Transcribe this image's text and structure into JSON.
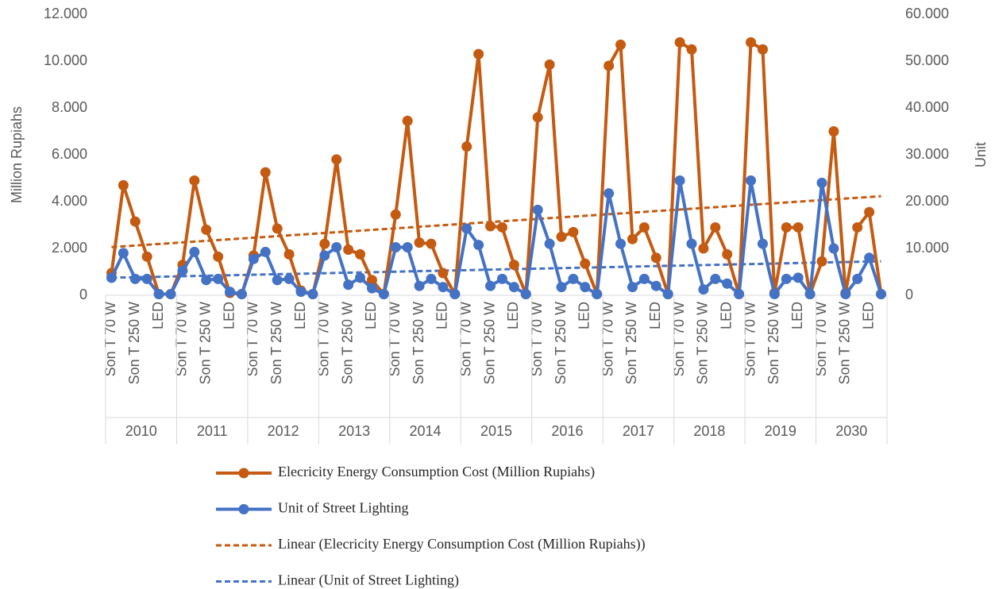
{
  "chart_data": {
    "type": "line",
    "ylabel": "Million Rupiahs",
    "y2label": "Unit",
    "groups": [
      "2010",
      "2011",
      "2012",
      "2013",
      "2014",
      "2015",
      "2016",
      "2017",
      "2018",
      "2019",
      "2030"
    ],
    "categories": [
      "Son T 70 W",
      null,
      "Son T 250 W",
      null,
      "LED",
      null,
      "Son T 70 W",
      null,
      "Son T 250 W",
      null,
      "LED",
      null,
      "Son T 70 W",
      null,
      "Son T 250 W",
      null,
      "LED",
      null,
      "Son T 70 W",
      null,
      "Son T 250 W",
      null,
      "LED",
      null,
      "Son T 70 W",
      null,
      "Son T 250 W",
      null,
      "LED",
      null,
      "Son T 70 W",
      null,
      "Son T 250 W",
      null,
      "LED",
      null,
      "Son T 70 W",
      null,
      "Son T 250 W",
      null,
      "LED",
      null,
      "Son T 70 W",
      null,
      "Son T 250 W",
      null,
      "LED",
      null,
      "Son T 70 W",
      null,
      "Son T 250 W",
      null,
      "LED",
      null,
      "Son T 70 W",
      null,
      "Son T 250 W",
      null,
      "LED",
      null,
      "Son T 70 W",
      null,
      "Son T 250 W",
      null,
      "LED",
      null
    ],
    "series": [
      {
        "name": "Elecricity Energy Consumption Cost (Million Rupiahs)",
        "color": "#c55a11",
        "axis": "y",
        "values": [
          950,
          4700,
          3150,
          1650,
          50,
          50,
          1300,
          4900,
          2800,
          1650,
          100,
          50,
          1700,
          5250,
          2850,
          1750,
          200,
          50,
          2200,
          5800,
          1950,
          1750,
          650,
          50,
          3450,
          7450,
          2250,
          2200,
          950,
          50,
          6350,
          10300,
          2950,
          2900,
          1300,
          50,
          7600,
          9850,
          2500,
          2700,
          1350,
          50,
          9800,
          10700,
          2400,
          2900,
          1600,
          50,
          10800,
          10500,
          2000,
          2900,
          1750,
          50,
          10800,
          10500,
          100,
          2900,
          2900,
          50,
          1450,
          7000,
          100,
          2900,
          3550,
          50
        ]
      },
      {
        "name": "Unit of Street Lighting",
        "color": "#4472c4",
        "axis": "y2",
        "values": [
          3750,
          9000,
          3500,
          3500,
          250,
          250,
          5250,
          9250,
          3250,
          3500,
          750,
          250,
          7750,
          9250,
          3250,
          3500,
          750,
          250,
          8500,
          10250,
          2250,
          3750,
          1500,
          250,
          10250,
          10250,
          2000,
          3500,
          1750,
          250,
          14250,
          10750,
          2000,
          3500,
          1750,
          250,
          18250,
          11000,
          1750,
          3500,
          1750,
          250,
          21750,
          11000,
          1750,
          3500,
          2000,
          250,
          24500,
          11000,
          1250,
          3500,
          2500,
          250,
          24500,
          11000,
          250,
          3500,
          3750,
          250,
          24000,
          10000,
          250,
          3500,
          8000,
          250
        ]
      }
    ],
    "trendlines": [
      {
        "name": "Linear (Elecricity Energy Consumption Cost (Million Rupiahs))",
        "series": 0,
        "color": "#c55a11"
      },
      {
        "name": "Linear (Unit of Street Lighting)",
        "series": 1,
        "color": "#4472c4"
      }
    ],
    "ylim": [
      0,
      12000
    ],
    "yticks": [
      0,
      {
        "value": 2000,
        "label": "2.000"
      },
      {
        "value": 4000,
        "label": "4.000"
      },
      {
        "value": 6000,
        "label": "6.000"
      },
      {
        "value": 8000,
        "label": "8.000"
      },
      {
        "value": 10000,
        "label": "10.000"
      },
      {
        "value": 12000,
        "label": "12.000"
      }
    ],
    "y2lim": [
      0,
      60000
    ],
    "y2ticks": [
      0,
      {
        "value": 10000,
        "label": "10.000"
      },
      {
        "value": 20000,
        "label": "20.000"
      },
      {
        "value": 30000,
        "label": "30.000"
      },
      {
        "value": 40000,
        "label": "40.000"
      },
      {
        "value": 50000,
        "label": "50.000"
      },
      {
        "value": 60000,
        "label": "60.000"
      }
    ],
    "legend": "bottom"
  }
}
